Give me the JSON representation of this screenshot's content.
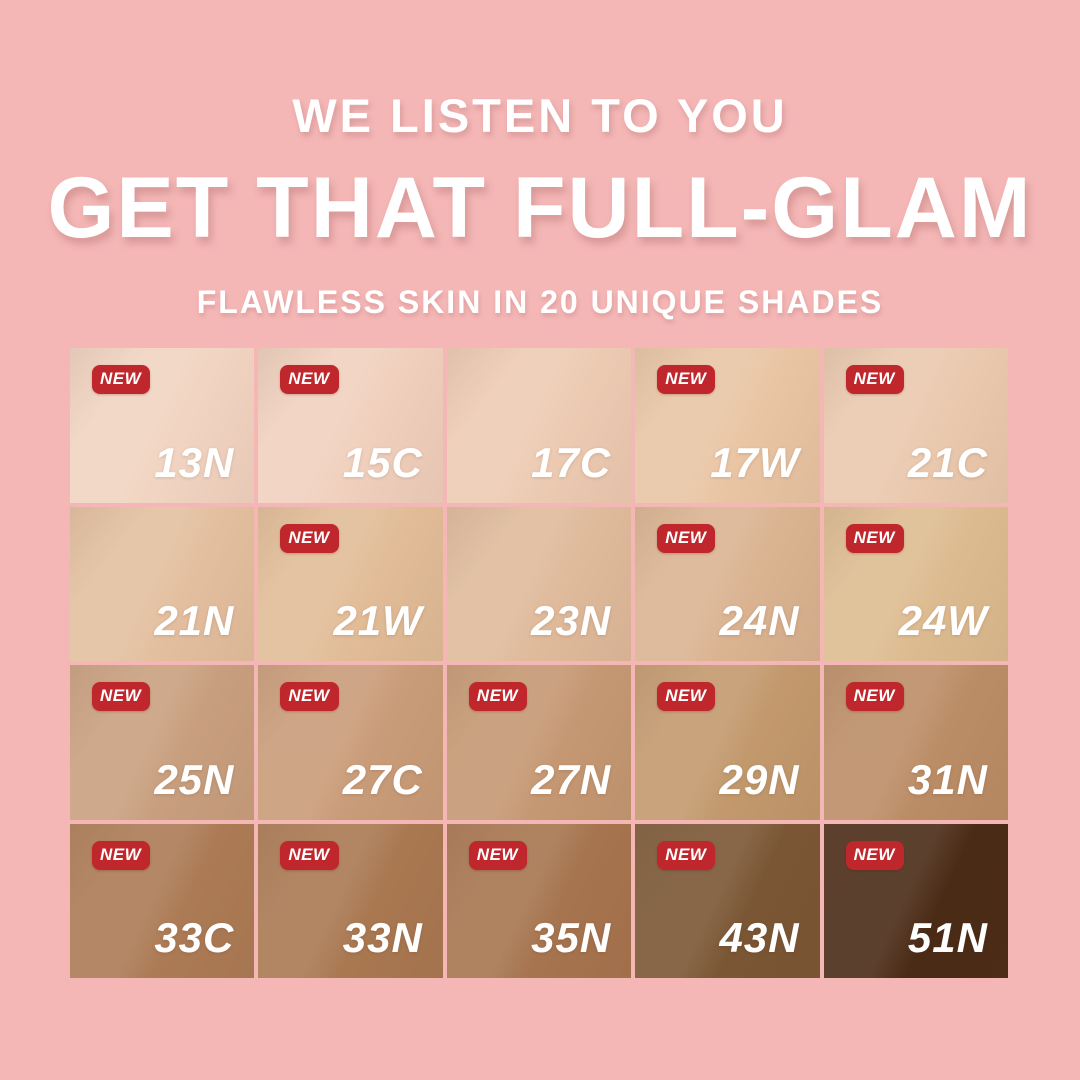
{
  "header": {
    "line1": "WE LISTEN TO YOU",
    "line2": "GET THAT FULL-GLAM",
    "line3": "FLAWLESS SKIN IN 20 UNIQUE SHADES"
  },
  "badge_label": "NEW",
  "colors": {
    "background": "#f4b7b6",
    "badge_red": "#bf272c",
    "text_white": "#ffffff"
  },
  "shade_grid": {
    "columns": 5,
    "rows": 4,
    "shades": [
      {
        "label": "13N",
        "new": true,
        "color": "#f1d4c1"
      },
      {
        "label": "15C",
        "new": true,
        "color": "#f0d0bd"
      },
      {
        "label": "17C",
        "new": false,
        "color": "#edcbb3"
      },
      {
        "label": "17W",
        "new": true,
        "color": "#e9c5a4"
      },
      {
        "label": "21C",
        "new": true,
        "color": "#eac9ae"
      },
      {
        "label": "21N",
        "new": false,
        "color": "#e3bf9f"
      },
      {
        "label": "21W",
        "new": true,
        "color": "#e1bc97"
      },
      {
        "label": "23N",
        "new": false,
        "color": "#dfba9b"
      },
      {
        "label": "24N",
        "new": true,
        "color": "#dab391"
      },
      {
        "label": "24W",
        "new": true,
        "color": "#ddbb90"
      },
      {
        "label": "25N",
        "new": true,
        "color": "#c89f7e"
      },
      {
        "label": "27C",
        "new": true,
        "color": "#c99c79"
      },
      {
        "label": "27N",
        "new": true,
        "color": "#c59873"
      },
      {
        "label": "29N",
        "new": true,
        "color": "#c2996d"
      },
      {
        "label": "31N",
        "new": true,
        "color": "#bb8d66"
      },
      {
        "label": "33C",
        "new": true,
        "color": "#ac7b55"
      },
      {
        "label": "33N",
        "new": true,
        "color": "#a97851"
      },
      {
        "label": "35N",
        "new": true,
        "color": "#a6744e"
      },
      {
        "label": "43N",
        "new": true,
        "color": "#7a5634"
      },
      {
        "label": "51N",
        "new": true,
        "color": "#4a2b16"
      }
    ]
  }
}
